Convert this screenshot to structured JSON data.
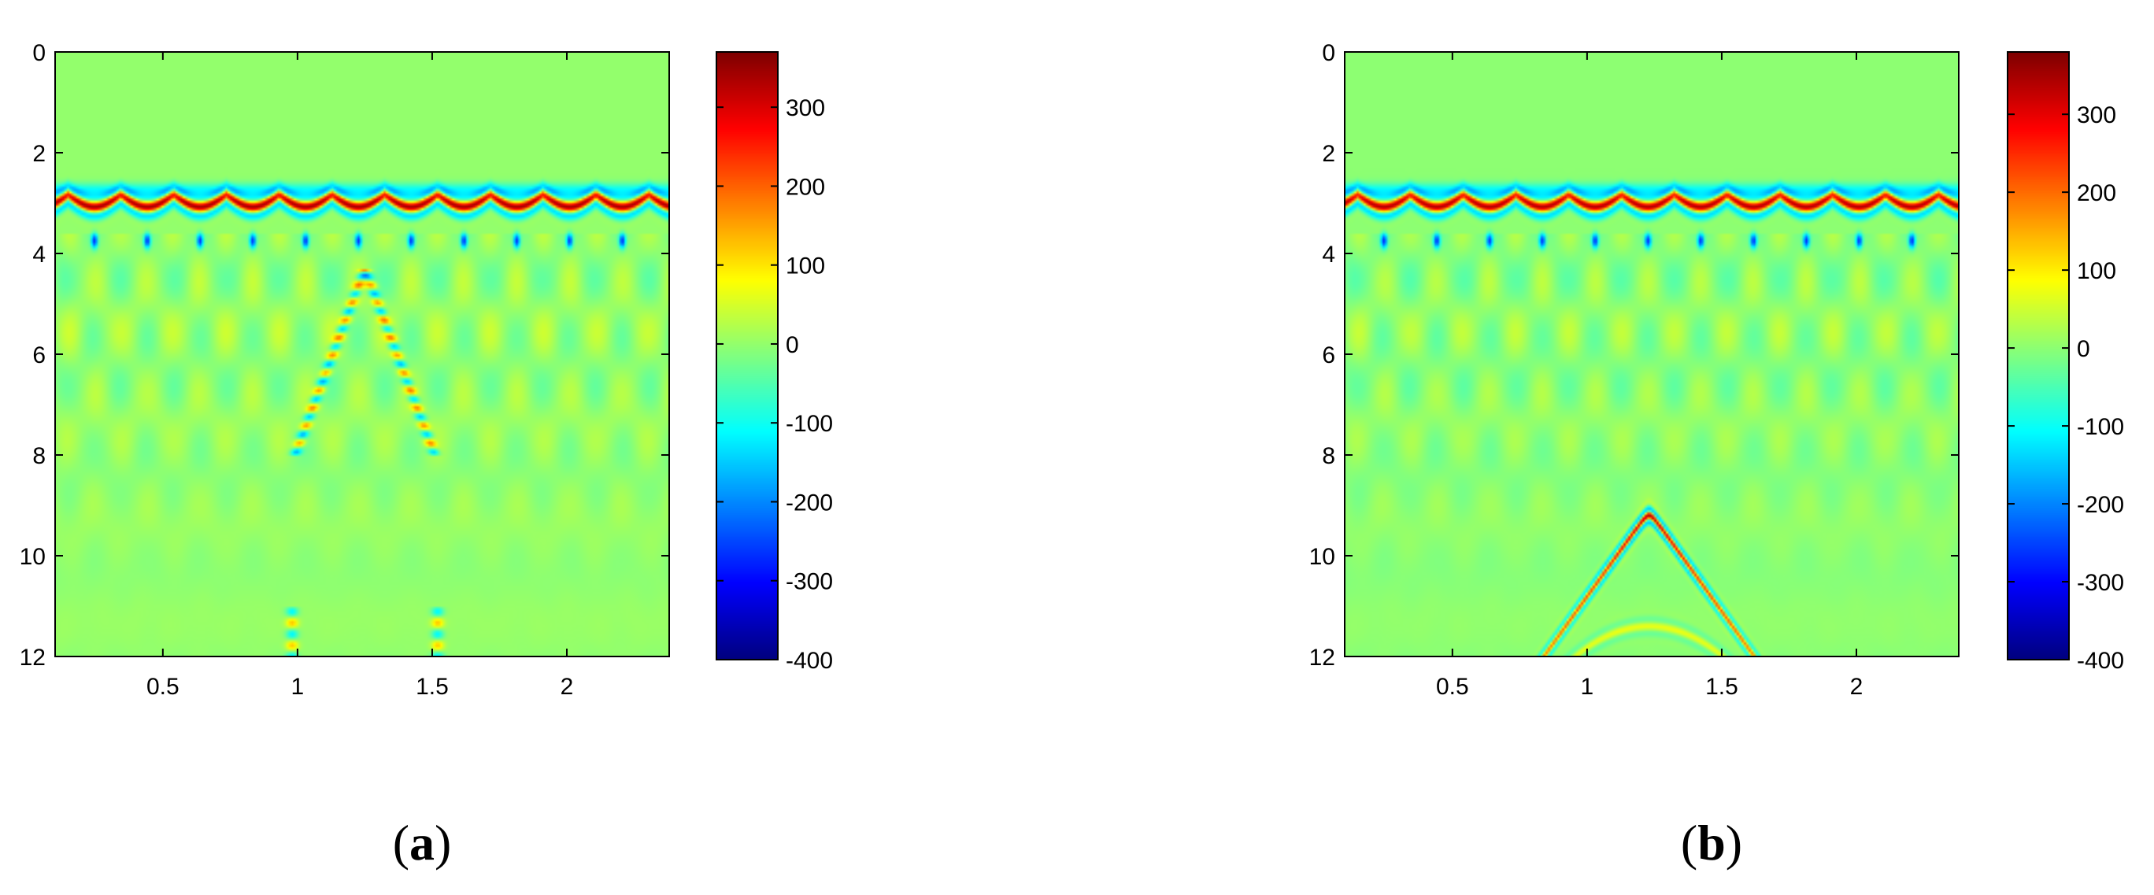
{
  "chart_data": [
    {
      "type": "heatmap",
      "panel_label": {
        "open": "(",
        "letter": "a",
        "close": ")"
      },
      "xlim": [
        0.1,
        2.38
      ],
      "ylim": [
        0,
        12
      ],
      "y_reversed": true,
      "x_ticks": [
        0.5,
        1,
        1.5,
        2
      ],
      "x_tick_labels": [
        "0.5",
        "1",
        "1.5",
        "2"
      ],
      "y_ticks": [
        0,
        2,
        4,
        6,
        8,
        10,
        12
      ],
      "y_tick_labels": [
        "0",
        "2",
        "4",
        "6",
        "8",
        "10",
        "12"
      ],
      "colorbar": {
        "colormap": "jet",
        "range": [
          -400,
          370
        ],
        "ticks": [
          300,
          200,
          100,
          0,
          -100,
          -200,
          -300,
          -400
        ],
        "tick_labels": [
          "300",
          "200",
          "100",
          "0",
          "-100",
          "-200",
          "-300",
          "-400"
        ]
      },
      "field": {
        "background": 0,
        "direct_wave": {
          "depth": 3.1,
          "amplitude": 350
        },
        "scatter_period": 0.196,
        "feature": {
          "kind": "inverted-v",
          "apex_x": 1.25,
          "apex_y": 4.3,
          "end_y": 8.0,
          "amplitude": 160
        }
      }
    },
    {
      "type": "heatmap",
      "panel_label": {
        "open": "(",
        "letter": "b",
        "close": ")"
      },
      "xlim": [
        0.1,
        2.38
      ],
      "ylim": [
        0,
        12
      ],
      "y_reversed": true,
      "x_ticks": [
        0.5,
        1,
        1.5,
        2
      ],
      "x_tick_labels": [
        "0.5",
        "1",
        "1.5",
        "2"
      ],
      "y_ticks": [
        0,
        2,
        4,
        6,
        8,
        10,
        12
      ],
      "y_tick_labels": [
        "0",
        "2",
        "4",
        "6",
        "8",
        "10",
        "12"
      ],
      "colorbar": {
        "colormap": "jet",
        "range": [
          -400,
          380
        ],
        "ticks": [
          300,
          200,
          100,
          0,
          -100,
          -200,
          -300,
          -400
        ],
        "tick_labels": [
          "300",
          "200",
          "100",
          "0",
          "-100",
          "-200",
          "-300",
          "-400"
        ]
      },
      "field": {
        "background": 0,
        "direct_wave": {
          "depth": 3.1,
          "amplitude": 350
        },
        "scatter_period": 0.196,
        "feature": {
          "kind": "hyperbola",
          "apex_x": 1.23,
          "apex_y": 9.2,
          "amplitude": 330
        }
      }
    }
  ]
}
